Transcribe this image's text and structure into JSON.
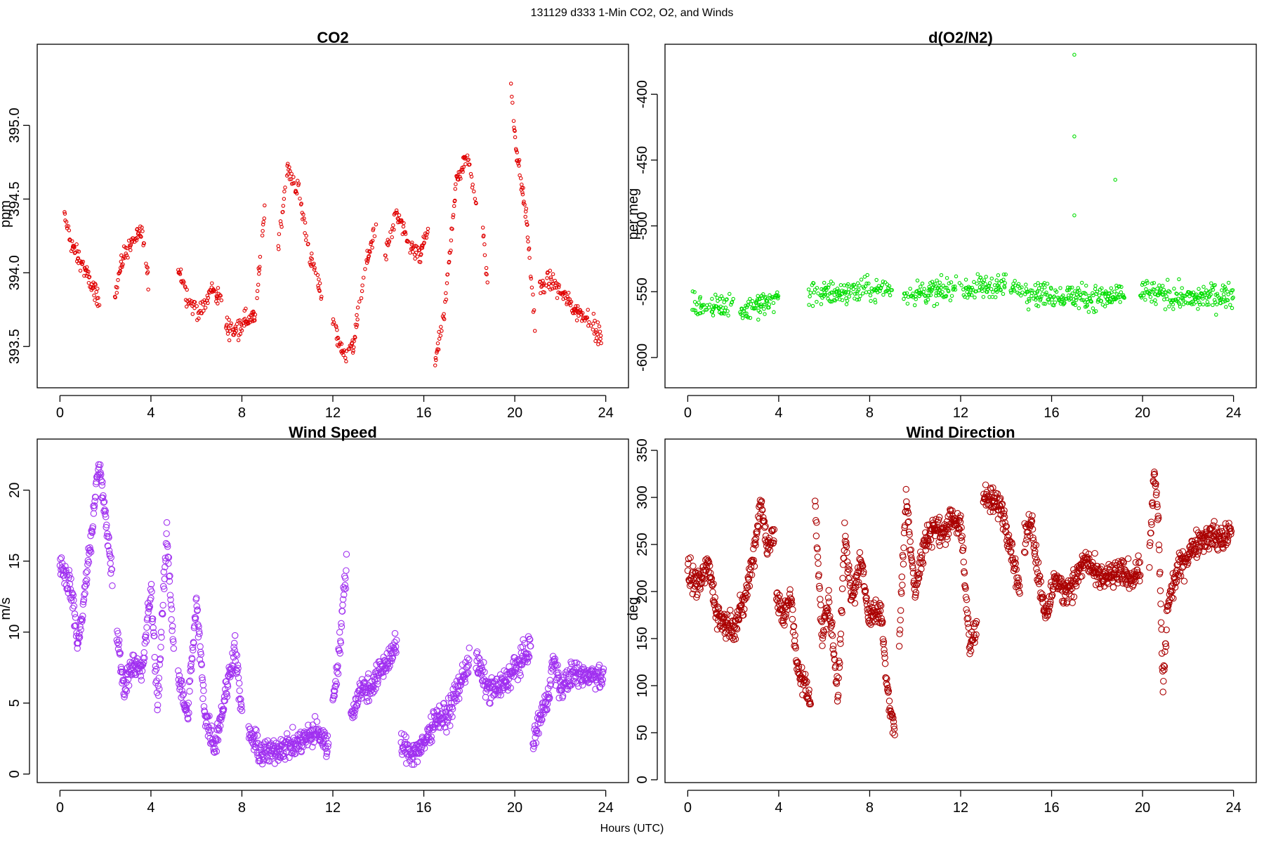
{
  "figure": {
    "suptitle": "131129   d333   1-Min CO2, O2, and Winds",
    "xlabel": "Hours (UTC)"
  },
  "chart_data": [
    {
      "id": "co2",
      "type": "scatter",
      "title": "CO2",
      "ylabel": "ppm",
      "xlim": [
        -1.0,
        25.0
      ],
      "ylim": [
        393.22,
        395.55
      ],
      "xticks": [
        0,
        4,
        8,
        12,
        16,
        20,
        24
      ],
      "yticks": [
        393.5,
        394.0,
        394.5,
        395.0
      ],
      "ytick_labels": [
        "393.5",
        "394.0",
        "394.5",
        "395.0"
      ],
      "color": "#e00000",
      "marker": "small-circle",
      "segments": [
        {
          "x": [
            0.2,
            0.5,
            0.9,
            1.3,
            1.8
          ],
          "y": [
            394.38,
            394.2,
            394.08,
            393.95,
            393.78
          ]
        },
        {
          "x": [
            2.4,
            2.8,
            3.2,
            3.6,
            3.9
          ],
          "y": [
            393.85,
            394.12,
            394.22,
            394.28,
            393.92
          ]
        },
        {
          "x": [
            5.2,
            5.7,
            6.2,
            6.7,
            7.1
          ],
          "y": [
            394.05,
            393.8,
            393.72,
            393.9,
            393.8
          ]
        },
        {
          "x": [
            7.3,
            7.7,
            8.1,
            8.6,
            9.0
          ],
          "y": [
            393.65,
            393.6,
            393.68,
            393.7,
            394.45
          ]
        },
        {
          "x": [
            9.6,
            10.0,
            10.5,
            11.0,
            11.5
          ],
          "y": [
            394.2,
            394.7,
            394.55,
            394.1,
            393.85
          ]
        },
        {
          "x": [
            12.0,
            12.4,
            12.9,
            13.4,
            13.9
          ],
          "y": [
            393.7,
            393.45,
            393.5,
            394.0,
            394.35
          ]
        },
        {
          "x": [
            14.3,
            14.8,
            15.3,
            15.8,
            16.2
          ],
          "y": [
            394.1,
            394.4,
            394.2,
            394.1,
            394.3
          ]
        },
        {
          "x": [
            16.5,
            16.9,
            17.4,
            17.9,
            18.3
          ],
          "y": [
            393.4,
            393.7,
            394.6,
            394.8,
            394.5
          ]
        },
        {
          "x": [
            18.6,
            18.8
          ],
          "y": [
            394.3,
            393.9
          ]
        },
        {
          "x": [
            19.8,
            20.1,
            20.5,
            20.9
          ],
          "y": [
            395.3,
            394.8,
            394.4,
            393.6
          ]
        },
        {
          "x": [
            21.1,
            21.6,
            22.1,
            22.7,
            23.2,
            23.8
          ],
          "y": [
            393.9,
            393.95,
            393.85,
            393.75,
            393.7,
            393.55
          ]
        }
      ]
    },
    {
      "id": "o2",
      "type": "scatter",
      "title": "d(O2/N2)",
      "ylabel": "per meg",
      "xlim": [
        -1.0,
        25.0
      ],
      "ylim": [
        -623,
        -362
      ],
      "xticks": [
        0,
        4,
        8,
        12,
        16,
        20,
        24
      ],
      "yticks": [
        -600,
        -550,
        -500,
        -450,
        -400
      ],
      "ytick_labels": [
        "-600",
        "-550",
        "-500",
        "-450",
        "-400"
      ],
      "color": "#00dd00",
      "marker": "small-circle",
      "segments": [
        {
          "x": [
            0.2,
            1.0,
            2.0
          ],
          "y": [
            -560,
            -562,
            -558
          ]
        },
        {
          "x": [
            2.3,
            3.1,
            4.0
          ],
          "y": [
            -565,
            -560,
            -555
          ]
        },
        {
          "x": [
            5.3,
            7.0,
            9.0
          ],
          "y": [
            -552,
            -550,
            -548
          ]
        },
        {
          "x": [
            9.5,
            12.0,
            14.0
          ],
          "y": [
            -552,
            -548,
            -545
          ]
        },
        {
          "x": [
            14.2,
            16.0,
            18.0,
            19.2
          ],
          "y": [
            -548,
            -552,
            -555,
            -553
          ]
        },
        {
          "x": [
            19.9,
            22.0,
            24.0
          ],
          "y": [
            -550,
            -555,
            -552
          ]
        }
      ],
      "outliers": [
        {
          "x": 17.0,
          "y": -370
        },
        {
          "x": 17.0,
          "y": -432
        },
        {
          "x": 18.8,
          "y": -465
        },
        {
          "x": 17.0,
          "y": -492
        }
      ]
    },
    {
      "id": "ws",
      "type": "scatter",
      "title": "Wind Speed",
      "ylabel": "m/s",
      "xlim": [
        -1.0,
        25.0
      ],
      "ylim": [
        -0.6,
        23.6
      ],
      "xticks": [
        0,
        4,
        8,
        12,
        16,
        20,
        24
      ],
      "yticks": [
        0,
        5,
        10,
        15,
        20
      ],
      "ytick_labels": [
        "0",
        "5",
        "10",
        "15",
        "20"
      ],
      "color": "#a030f0",
      "marker": "circle",
      "segments": [
        {
          "x": [
            0.0,
            0.5,
            0.8,
            1.1,
            1.4,
            1.7,
            2.0,
            2.3
          ],
          "y": [
            15,
            13,
            9,
            13,
            17,
            22,
            18,
            14
          ]
        },
        {
          "x": [
            2.5,
            2.8,
            3.2,
            3.6,
            4.0,
            4.3,
            4.7,
            5.0
          ],
          "y": [
            10,
            6,
            8,
            7,
            13,
            5,
            17,
            9
          ]
        },
        {
          "x": [
            5.2,
            5.6,
            6.0,
            6.4,
            6.8,
            7.2,
            7.7,
            8.0
          ],
          "y": [
            7,
            4,
            12,
            4,
            2,
            5,
            9,
            4
          ]
        },
        {
          "x": [
            8.3,
            8.8,
            9.3,
            9.8,
            10.3,
            10.8,
            11.3,
            11.8
          ],
          "y": [
            3,
            1.5,
            1.5,
            2,
            2,
            2.5,
            3,
            2
          ]
        },
        {
          "x": [
            12.0,
            12.3,
            12.6
          ],
          "y": [
            5,
            9,
            15
          ]
        },
        {
          "x": [
            12.8,
            13.2,
            13.6,
            14.0,
            14.4,
            14.8
          ],
          "y": [
            4,
            6,
            6,
            7,
            8,
            9
          ]
        },
        {
          "x": [
            15.0,
            15.5,
            16.0,
            16.5,
            17.0,
            17.5,
            18.0
          ],
          "y": [
            2,
            1.5,
            2,
            4,
            4,
            6,
            8
          ]
        },
        {
          "x": [
            18.3,
            18.8,
            19.3,
            19.8,
            20.3,
            20.7
          ],
          "y": [
            8,
            6,
            6,
            7,
            8,
            9
          ]
        },
        {
          "x": [
            20.8,
            21.1,
            21.4,
            21.7,
            22.0,
            22.5,
            23.0,
            23.5,
            23.9
          ],
          "y": [
            2,
            4,
            5,
            8,
            6,
            7,
            7,
            7,
            7
          ]
        }
      ]
    },
    {
      "id": "wd",
      "type": "scatter",
      "title": "Wind Direction",
      "ylabel": "deg",
      "xlim": [
        -1.0,
        25.0
      ],
      "ylim": [
        -3,
        362
      ],
      "xticks": [
        0,
        4,
        8,
        12,
        16,
        20,
        24
      ],
      "yticks": [
        0,
        50,
        100,
        150,
        200,
        250,
        300,
        350
      ],
      "ytick_labels": [
        "0",
        "50",
        "100",
        "150",
        "200",
        "250",
        "300",
        "350"
      ],
      "color": "#aa0000",
      "marker": "circle",
      "segments": [
        {
          "x": [
            0.0,
            0.5,
            0.9,
            1.3,
            1.7,
            2.1,
            2.5,
            2.9,
            3.2,
            3.5,
            3.8
          ],
          "y": [
            220,
            205,
            230,
            175,
            165,
            165,
            190,
            240,
            295,
            250,
            260
          ]
        },
        {
          "x": [
            3.9,
            4.2,
            4.5,
            4.8,
            5.1,
            5.4
          ],
          "y": [
            195,
            170,
            200,
            120,
            105,
            80
          ]
        },
        {
          "x": [
            5.6,
            5.9,
            6.2,
            6.6,
            6.9,
            7.2,
            7.6,
            8.0,
            8.5,
            8.8,
            9.1
          ],
          "y": [
            300,
            150,
            190,
            90,
            260,
            190,
            230,
            175,
            180,
            90,
            50
          ]
        },
        {
          "x": [
            9.3,
            9.6,
            10.0,
            10.4,
            10.8,
            11.2,
            11.6,
            12.0,
            12.4,
            12.7
          ],
          "y": [
            150,
            300,
            200,
            250,
            270,
            260,
            280,
            270,
            140,
            170
          ]
        },
        {
          "x": [
            13.0,
            13.4,
            13.8,
            14.2,
            14.6
          ],
          "y": [
            300,
            295,
            290,
            250,
            200
          ]
        },
        {
          "x": [
            14.8,
            15.1,
            15.4,
            15.8,
            16.1,
            16.5,
            17.0,
            17.5,
            18.0,
            18.5,
            19.0,
            19.5,
            19.9
          ],
          "y": [
            250,
            280,
            220,
            170,
            215,
            200,
            210,
            235,
            215,
            215,
            220,
            215,
            225
          ]
        },
        {
          "x": [
            20.3,
            20.5,
            20.7,
            20.9,
            21.1,
            21.5,
            22.0,
            22.5,
            23.0,
            23.5,
            23.9
          ],
          "y": [
            230,
            330,
            270,
            95,
            185,
            220,
            240,
            255,
            260,
            255,
            265
          ]
        }
      ]
    }
  ]
}
